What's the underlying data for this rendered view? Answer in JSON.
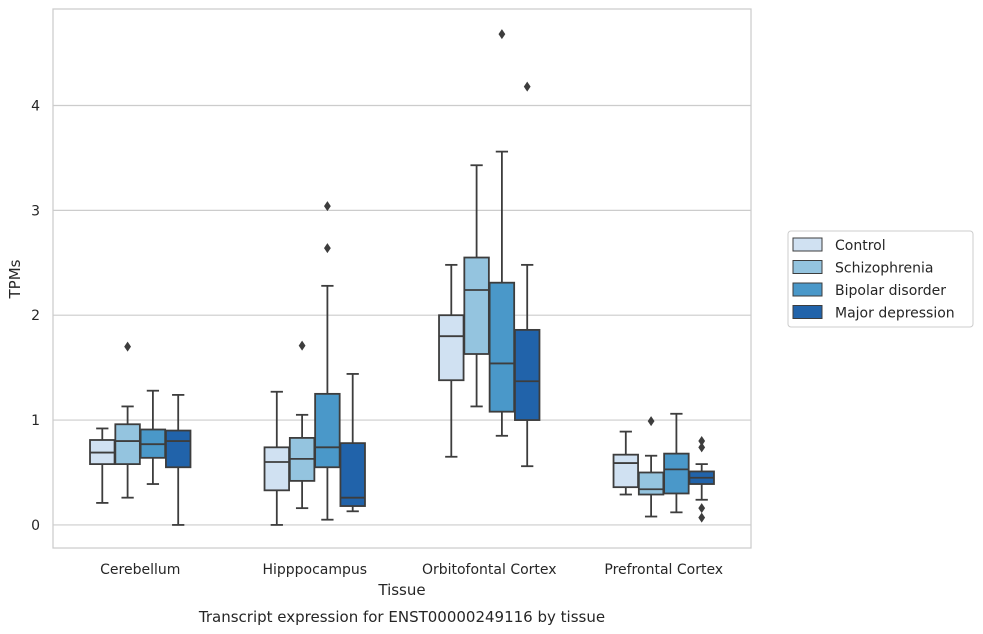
{
  "chart_data": {
    "type": "box",
    "caption": "Transcript expression for ENST00000249116 by tissue",
    "xlabel": "Tissue",
    "ylabel": "TPMs",
    "ylim": [
      -0.22,
      4.92
    ],
    "yticks": [
      0,
      1,
      2,
      3,
      4
    ],
    "grid": "horizontal",
    "legend_position": "right",
    "categories": [
      "Cerebellum",
      "Hipppocampus",
      "Orbitofontal Cortex",
      "Prefrontal Cortex"
    ],
    "series": [
      {
        "name": "Control",
        "color": "#d0e1f2",
        "boxes": [
          {
            "whisker_low": 0.21,
            "q1": 0.58,
            "median": 0.69,
            "q3": 0.81,
            "whisker_high": 0.92,
            "outliers": []
          },
          {
            "whisker_low": 0.0,
            "q1": 0.33,
            "median": 0.6,
            "q3": 0.74,
            "whisker_high": 1.27,
            "outliers": []
          },
          {
            "whisker_low": 0.65,
            "q1": 1.38,
            "median": 1.8,
            "q3": 2.0,
            "whisker_high": 2.48,
            "outliers": []
          },
          {
            "whisker_low": 0.29,
            "q1": 0.36,
            "median": 0.59,
            "q3": 0.67,
            "whisker_high": 0.89,
            "outliers": []
          }
        ]
      },
      {
        "name": "Schizophrenia",
        "color": "#94c4df",
        "boxes": [
          {
            "whisker_low": 0.26,
            "q1": 0.58,
            "median": 0.8,
            "q3": 0.96,
            "whisker_high": 1.13,
            "outliers": [
              1.7
            ]
          },
          {
            "whisker_low": 0.16,
            "q1": 0.42,
            "median": 0.63,
            "q3": 0.83,
            "whisker_high": 1.05,
            "outliers": [
              1.71
            ]
          },
          {
            "whisker_low": 1.13,
            "q1": 1.63,
            "median": 2.24,
            "q3": 2.55,
            "whisker_high": 3.43,
            "outliers": []
          },
          {
            "whisker_low": 0.08,
            "q1": 0.29,
            "median": 0.34,
            "q3": 0.5,
            "whisker_high": 0.66,
            "outliers": [
              0.99
            ]
          }
        ]
      },
      {
        "name": "Bipolar disorder",
        "color": "#4a98c9",
        "boxes": [
          {
            "whisker_low": 0.39,
            "q1": 0.64,
            "median": 0.77,
            "q3": 0.91,
            "whisker_high": 1.28,
            "outliers": []
          },
          {
            "whisker_low": 0.05,
            "q1": 0.55,
            "median": 0.74,
            "q3": 1.25,
            "whisker_high": 2.28,
            "outliers": [
              2.64,
              3.04
            ]
          },
          {
            "whisker_low": 0.85,
            "q1": 1.08,
            "median": 1.54,
            "q3": 2.31,
            "whisker_high": 3.56,
            "outliers": [
              4.68
            ]
          },
          {
            "whisker_low": 0.12,
            "q1": 0.3,
            "median": 0.53,
            "q3": 0.68,
            "whisker_high": 1.06,
            "outliers": []
          }
        ]
      },
      {
        "name": "Major depression",
        "color": "#2163aa",
        "boxes": [
          {
            "whisker_low": 0.0,
            "q1": 0.55,
            "median": 0.8,
            "q3": 0.9,
            "whisker_high": 1.24,
            "outliers": []
          },
          {
            "whisker_low": 0.13,
            "q1": 0.18,
            "median": 0.26,
            "q3": 0.78,
            "whisker_high": 1.44,
            "outliers": []
          },
          {
            "whisker_low": 0.56,
            "q1": 1.0,
            "median": 1.37,
            "q3": 1.86,
            "whisker_high": 2.48,
            "outliers": [
              4.18
            ]
          },
          {
            "whisker_low": 0.24,
            "q1": 0.39,
            "median": 0.45,
            "q3": 0.51,
            "whisker_high": 0.58,
            "outliers": [
              0.07,
              0.16,
              0.74,
              0.8
            ]
          }
        ]
      }
    ]
  }
}
